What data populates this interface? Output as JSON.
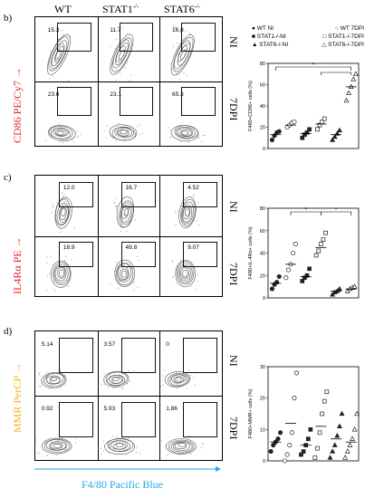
{
  "panels": {
    "b": {
      "letter": "b)",
      "col_headers": [
        "WT",
        "STAT1",
        "STAT6"
      ],
      "col_sup": [
        "",
        "-/-",
        "-/-"
      ],
      "ylabel": "CD86 PE/Cy7",
      "ylabel_color": "#e8232a",
      "row_labels": [
        "NI",
        "7DPI"
      ],
      "percents": [
        [
          "15.3",
          "11.7",
          "16.8"
        ],
        [
          "23.6",
          "23.1",
          "65.3"
        ]
      ]
    },
    "c": {
      "letter": "c)",
      "ylabel": "IL4Rα PE",
      "ylabel_color": "#e8232a",
      "row_labels": [
        "NI",
        "7DPI"
      ],
      "percents": [
        [
          "12.0",
          "16.7",
          "4.52"
        ],
        [
          "18.9",
          "49.8",
          "9.07"
        ]
      ]
    },
    "d": {
      "letter": "d)",
      "ylabel": "MMR PerCP",
      "ylabel_color": "#f2b51a",
      "xlabel": "F4/80 Pacific Blue",
      "xlabel_color": "#27a7e0",
      "row_labels": [
        "NI",
        "7DPI"
      ],
      "percents": [
        [
          "5.14",
          "3.57",
          "0"
        ],
        [
          "0.92",
          "5.93",
          "1.86"
        ]
      ]
    }
  },
  "legend": [
    {
      "text": "WT NI",
      "symbol": "circle-filled"
    },
    {
      "text": "WT 7DPI",
      "symbol": "circle-open"
    },
    {
      "text": "STAT1-/-NI",
      "symbol": "square-filled"
    },
    {
      "text": "STAT1-/-7DPI",
      "symbol": "square-open"
    },
    {
      "text": "STAT6-/-NI",
      "symbol": "triangle-filled"
    },
    {
      "text": "STAT6-/-7DPI",
      "symbol": "triangle-open"
    }
  ],
  "chart_data": [
    {
      "type": "scatter",
      "ylabel": "F480+CD86+ cells (%)",
      "ylim": [
        0,
        80
      ],
      "yticks": [
        "0",
        "20",
        "40",
        "60",
        "80"
      ],
      "groups": [
        "WT NI",
        "WT 7DPI",
        "STAT1-/-NI",
        "STAT1-/-7DPI",
        "STAT6-/-NI",
        "STAT6-/-7DPI"
      ],
      "series": [
        {
          "values": [
            8,
            12,
            15,
            16
          ]
        },
        {
          "values": [
            20,
            22,
            24,
            25
          ]
        },
        {
          "values": [
            10,
            13,
            15,
            18
          ]
        },
        {
          "values": [
            18,
            22,
            25,
            28
          ]
        },
        {
          "values": [
            8,
            11,
            14,
            17
          ]
        },
        {
          "values": [
            45,
            52,
            58,
            65,
            70
          ]
        }
      ],
      "means": [
        13,
        22,
        14,
        23,
        13,
        58
      ],
      "significance": [
        "*",
        "*"
      ]
    },
    {
      "type": "scatter",
      "ylabel": "F480+IL-4Rα+ cells (%)",
      "ylim": [
        0,
        80
      ],
      "yticks": [
        "0",
        "20",
        "40",
        "60",
        "80"
      ],
      "groups": [
        "WT NI",
        "WT 7DPI",
        "STAT1-/-NI",
        "STAT1-/-7DPI",
        "STAT6-/-NI",
        "STAT6-/-7DPI"
      ],
      "series": [
        {
          "values": [
            8,
            12,
            14,
            19
          ]
        },
        {
          "values": [
            18,
            25,
            30,
            40,
            48
          ]
        },
        {
          "values": [
            15,
            18,
            20,
            26
          ]
        },
        {
          "values": [
            38,
            42,
            48,
            52,
            58
          ]
        },
        {
          "values": [
            3,
            5,
            6,
            8
          ]
        },
        {
          "values": [
            6,
            8,
            9,
            10
          ]
        }
      ],
      "means": [
        13,
        30,
        19,
        45,
        6,
        8
      ],
      "significance": [
        "*",
        "*"
      ]
    },
    {
      "type": "scatter",
      "ylabel": "F480+MMR+ cells (%)",
      "ylim": [
        0,
        30
      ],
      "yticks": [
        "0",
        "10",
        "20",
        "30"
      ],
      "groups": [
        "WT NI",
        "WT 7DPI",
        "STAT1-/-NI",
        "STAT1-/-7DPI",
        "STAT6-/-NI",
        "STAT6-/-7DPI"
      ],
      "series": [
        {
          "values": [
            3,
            5,
            6,
            7,
            9
          ]
        },
        {
          "values": [
            0,
            2,
            5,
            9,
            20,
            28
          ]
        },
        {
          "values": [
            2,
            3,
            5,
            7,
            10
          ]
        },
        {
          "values": [
            1,
            4,
            9,
            15,
            19,
            22
          ]
        },
        {
          "values": [
            1,
            3,
            5,
            8,
            11,
            15
          ]
        },
        {
          "values": [
            1,
            3,
            5,
            7,
            10,
            15
          ]
        }
      ],
      "means": [
        6,
        12,
        5,
        11,
        7,
        6
      ],
      "significance": []
    }
  ]
}
